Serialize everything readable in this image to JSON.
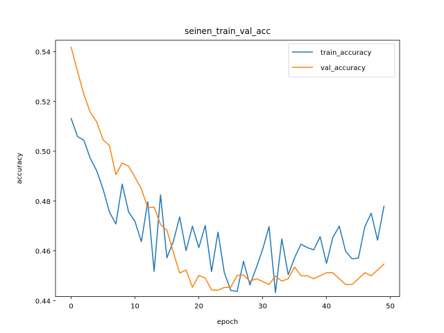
{
  "chart_data": {
    "type": "line",
    "title": "seinen_train_val_acc",
    "xlabel": "epoch",
    "ylabel": "accuracy",
    "xlim": [
      -2.45,
      51.45
    ],
    "ylim": [
      0.4416,
      0.5446
    ],
    "xticks": [
      0,
      10,
      20,
      30,
      40,
      50
    ],
    "yticks": [
      0.44,
      0.46,
      0.48,
      0.5,
      0.52,
      0.54
    ],
    "ytick_labels": [
      "0.44",
      "0.46",
      "0.48",
      "0.50",
      "0.52",
      "0.54"
    ],
    "grid": false,
    "legend_position": "top-right",
    "x": [
      0,
      1,
      2,
      3,
      4,
      5,
      6,
      7,
      8,
      9,
      10,
      11,
      12,
      13,
      14,
      15,
      16,
      17,
      18,
      19,
      20,
      21,
      22,
      23,
      24,
      25,
      26,
      27,
      28,
      29,
      30,
      31,
      32,
      33,
      34,
      35,
      36,
      37,
      38,
      39,
      40,
      41,
      42,
      43,
      44,
      45,
      46,
      47,
      48,
      49
    ],
    "series": [
      {
        "name": "train_accuracy",
        "color": "#1f77b4",
        "values": [
          0.5132,
          0.5059,
          0.5044,
          0.4971,
          0.4922,
          0.4848,
          0.4756,
          0.4708,
          0.4868,
          0.4756,
          0.4718,
          0.4637,
          0.4797,
          0.4518,
          0.4825,
          0.4572,
          0.4637,
          0.4736,
          0.4601,
          0.4699,
          0.4613,
          0.4702,
          0.4517,
          0.4675,
          0.4512,
          0.4441,
          0.4437,
          0.4558,
          0.4463,
          0.4532,
          0.4606,
          0.4697,
          0.4432,
          0.4648,
          0.4504,
          0.4572,
          0.4627,
          0.4613,
          0.4604,
          0.4657,
          0.455,
          0.4654,
          0.4699,
          0.4598,
          0.4568,
          0.4571,
          0.4697,
          0.4751,
          0.4643,
          0.4779
        ]
      },
      {
        "name": "val_accuracy",
        "color": "#ff7f0e",
        "values": [
          0.5418,
          0.5321,
          0.5228,
          0.5156,
          0.5118,
          0.5046,
          0.5023,
          0.4906,
          0.4953,
          0.494,
          0.4896,
          0.4849,
          0.4774,
          0.4775,
          0.4706,
          0.4683,
          0.4595,
          0.4511,
          0.4523,
          0.4454,
          0.4501,
          0.4491,
          0.4443,
          0.4442,
          0.4453,
          0.4454,
          0.4501,
          0.4503,
          0.4478,
          0.4488,
          0.4477,
          0.4465,
          0.4499,
          0.4478,
          0.4488,
          0.4535,
          0.45,
          0.45,
          0.4488,
          0.45,
          0.4512,
          0.4512,
          0.4488,
          0.4465,
          0.4465,
          0.4488,
          0.4512,
          0.45,
          0.4523,
          0.4547
        ]
      }
    ]
  }
}
